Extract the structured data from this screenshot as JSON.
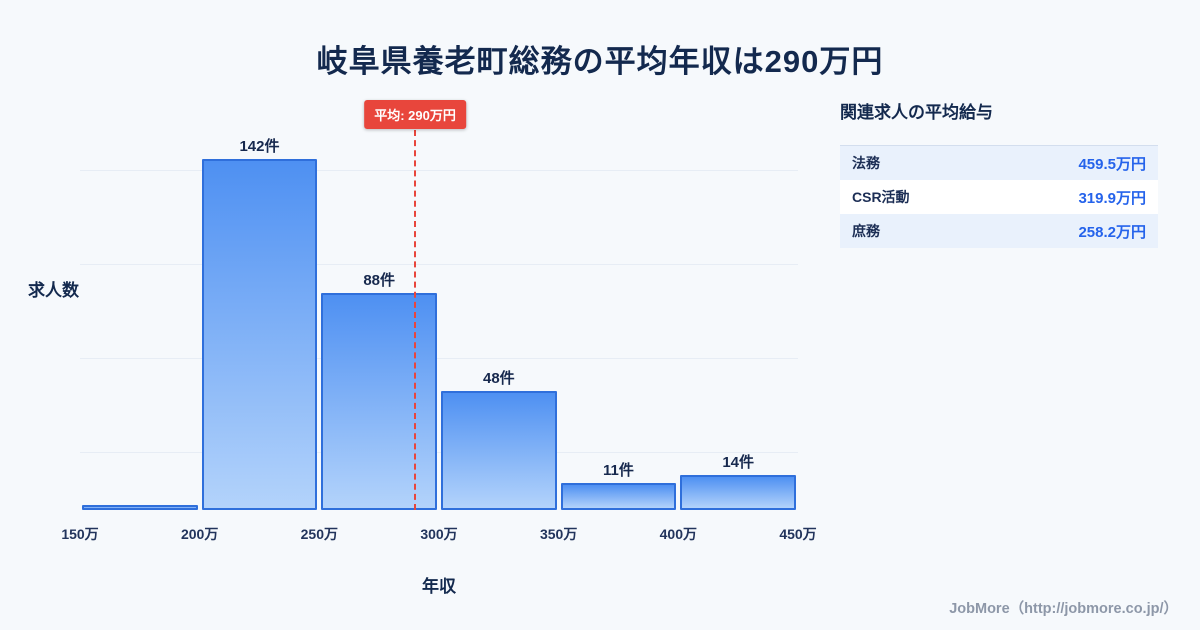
{
  "page": {
    "title": "岐阜県養老町総務の平均年収は290万円",
    "footer": "JobMore（http://jobmore.co.jp/）"
  },
  "chart_data": {
    "type": "bar",
    "title": "岐阜県養老町総務の平均年収は290万円",
    "xlabel": "年収",
    "ylabel": "求人数",
    "x_ticks": [
      "150万",
      "200万",
      "250万",
      "300万",
      "350万",
      "400万",
      "450万"
    ],
    "categories": [
      "150万-200万",
      "200万-250万",
      "250万-300万",
      "300万-350万",
      "350万-400万",
      "400万-450万"
    ],
    "values": [
      2,
      142,
      88,
      48,
      11,
      14
    ],
    "bar_labels": [
      "",
      "142件",
      "88件",
      "48件",
      "11件",
      "14件"
    ],
    "ylim": [
      0,
      166
    ],
    "grid": true,
    "legend": false,
    "average_line": {
      "label": "平均: 290万円",
      "value": 290,
      "axis_min": 150,
      "axis_max": 450
    },
    "colors": {
      "bar_gradient_top": "#4e90f2",
      "bar_gradient_bottom": "#b3d3fb",
      "bar_border": "#2f6fdb",
      "average_line": "#e8463c",
      "title_text": "#13294e",
      "value_accent": "#2563eb",
      "background": "#f6f9fc"
    }
  },
  "side_panel": {
    "heading": "関連求人の平均給与",
    "rows": [
      {
        "label": "法務",
        "value": "459.5万円"
      },
      {
        "label": "CSR活動",
        "value": "319.9万円"
      },
      {
        "label": "庶務",
        "value": "258.2万円"
      }
    ]
  }
}
